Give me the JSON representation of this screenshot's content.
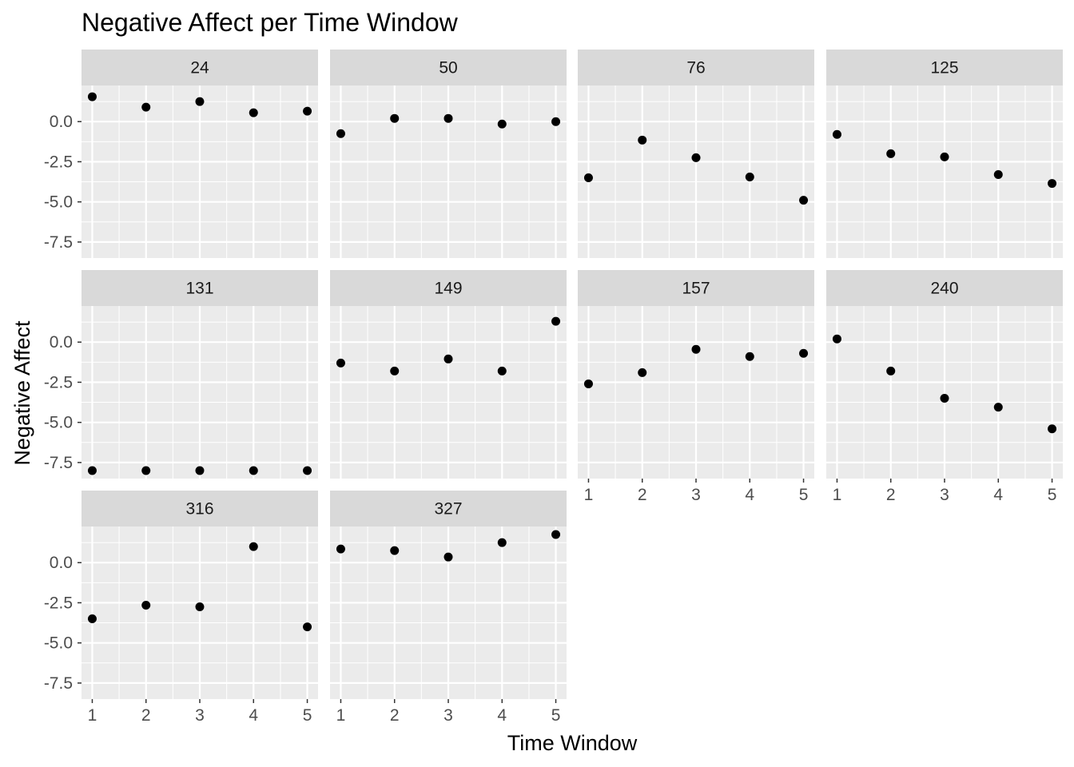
{
  "chart_data": {
    "type": "scatter",
    "title": "Negative Affect per Time Window",
    "xlabel": "Time Window",
    "ylabel": "Negative Affect",
    "x": [
      1,
      2,
      3,
      4,
      5
    ],
    "x_ticks": [
      "1",
      "2",
      "3",
      "4",
      "5"
    ],
    "y_ticks": [
      "0.0",
      "-2.5",
      "-5.0",
      "-7.5"
    ],
    "y_tick_values": [
      0.0,
      -2.5,
      -5.0,
      -7.5
    ],
    "xlim": [
      0.8,
      5.2
    ],
    "ylim": [
      -8.5,
      2.25
    ],
    "grid": true,
    "layout": "facet-wrap, 4 columns",
    "colors": {
      "panel_bg": "#ebebeb",
      "strip_bg": "#d9d9d9",
      "grid": "#ffffff",
      "point": "#000000"
    },
    "panels": [
      {
        "label": "24",
        "values": [
          1.55,
          0.9,
          1.25,
          0.55,
          0.65
        ]
      },
      {
        "label": "50",
        "values": [
          -0.75,
          0.2,
          0.2,
          -0.15,
          0.0
        ]
      },
      {
        "label": "76",
        "values": [
          -3.5,
          -1.15,
          -2.25,
          -3.45,
          -4.9
        ]
      },
      {
        "label": "125",
        "values": [
          -0.8,
          -2.0,
          -2.2,
          -3.3,
          -3.85
        ]
      },
      {
        "label": "131",
        "values": [
          -8.0,
          -8.0,
          -8.0,
          -8.0,
          -8.0
        ]
      },
      {
        "label": "149",
        "values": [
          -1.3,
          -1.8,
          -1.05,
          -1.8,
          1.3
        ]
      },
      {
        "label": "157",
        "values": [
          -2.6,
          -1.9,
          -0.45,
          -0.9,
          -0.7
        ]
      },
      {
        "label": "240",
        "values": [
          0.2,
          -1.8,
          -3.5,
          -4.05,
          -5.4
        ]
      },
      {
        "label": "316",
        "values": [
          -3.5,
          -2.65,
          -2.75,
          1.0,
          -4.0
        ]
      },
      {
        "label": "327",
        "values": [
          0.85,
          0.75,
          0.35,
          1.25,
          1.75
        ]
      }
    ]
  }
}
